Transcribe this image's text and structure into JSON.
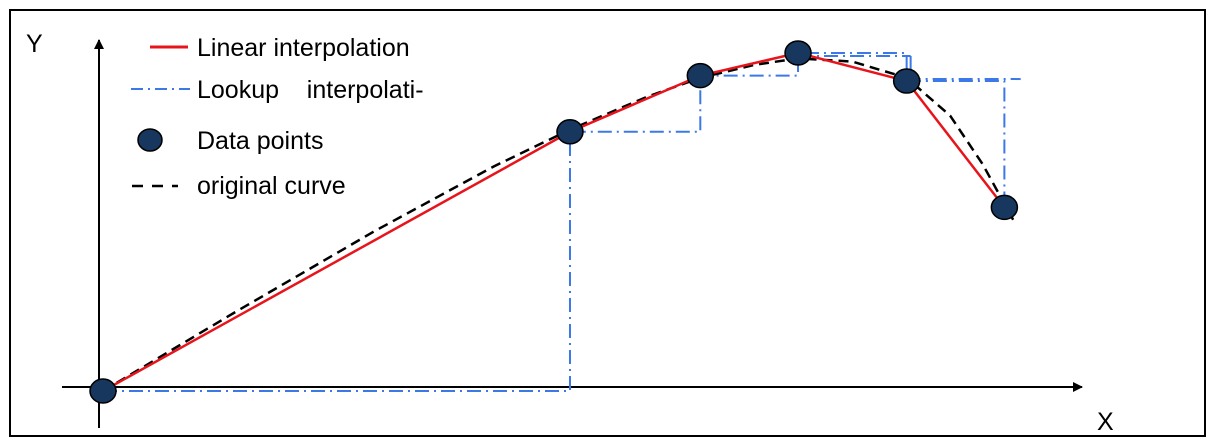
{
  "axes": {
    "y_label": "Y",
    "x_label": "X"
  },
  "legend": [
    {
      "key": "linear",
      "label": "Linear interpolation",
      "color": "#e8141b",
      "style": "solid"
    },
    {
      "key": "lookup",
      "label": "Lookup    interpolati-",
      "color": "#3c78e6",
      "style": "dash-dot"
    },
    {
      "key": "points",
      "label": "Data points",
      "color": "#17375e",
      "style": "marker"
    },
    {
      "key": "original",
      "label": "original curve",
      "color": "#000000",
      "style": "dashed"
    }
  ],
  "chart_data": {
    "type": "line",
    "xlabel": "X",
    "ylabel": "Y",
    "data_points": [
      {
        "x": 0,
        "y": 0
      },
      {
        "x": 4.3,
        "y": 2.4
      },
      {
        "x": 5.5,
        "y": 2.92
      },
      {
        "x": 6.4,
        "y": 3.13
      },
      {
        "x": 7.4,
        "y": 2.87
      },
      {
        "x": 8.3,
        "y": 1.7
      }
    ],
    "series": [
      {
        "name": "Linear interpolation",
        "style": "solid",
        "color": "#e8141b"
      },
      {
        "name": "Lookup    interpolati-",
        "style": "dash-dot",
        "color": "#3c78e6"
      },
      {
        "name": "original curve",
        "style": "dashed",
        "color": "#000000"
      }
    ]
  }
}
